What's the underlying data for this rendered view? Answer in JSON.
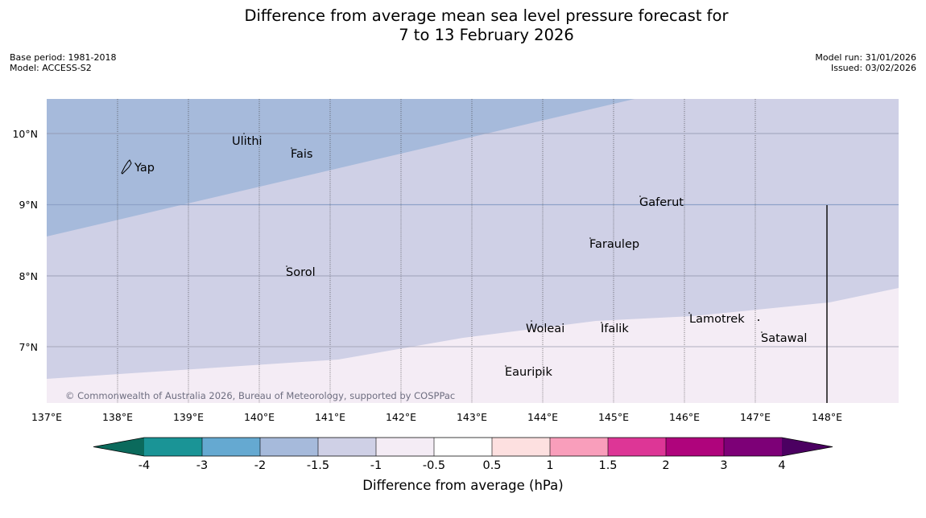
{
  "header": {
    "title_line1": "Difference from average mean sea level pressure forecast for",
    "title_line2": "7 to 13 February 2026",
    "base_period": "Base period: 1981-2018",
    "model": "Model: ACCESS-S2",
    "model_run": "Model run: 31/01/2026",
    "issued": "Issued: 03/02/2026"
  },
  "map": {
    "lon_range": [
      137,
      149
    ],
    "lat_range": [
      6.2,
      10.5
    ],
    "lon_labels": [
      "137°E",
      "138°E",
      "139°E",
      "140°E",
      "141°E",
      "142°E",
      "143°E",
      "144°E",
      "145°E",
      "146°E",
      "147°E",
      "148°E"
    ],
    "lat_labels": [
      "10°N",
      "9°N",
      "8°N",
      "7°N"
    ],
    "copyright": "© Commonwealth of Australia 2026, Bureau of Meteorology, supported by COSPPac",
    "islands": [
      {
        "name": "Yap",
        "lon": 138.2,
        "lat": 9.55
      },
      {
        "name": "Ulithi",
        "lon": 139.7,
        "lat": 9.9
      },
      {
        "name": "Fais",
        "lon": 140.5,
        "lat": 9.75
      },
      {
        "name": "Gaferut",
        "lon": 145.3,
        "lat": 9.05
      },
      {
        "name": "Faraulep",
        "lon": 144.6,
        "lat": 8.45
      },
      {
        "name": "Sorol",
        "lon": 140.4,
        "lat": 8.05
      },
      {
        "name": "Woleai",
        "lon": 143.9,
        "lat": 7.3
      },
      {
        "name": "Ifalik",
        "lon": 144.5,
        "lat": 7.25
      },
      {
        "name": "Lamotrek",
        "lon": 146.0,
        "lat": 7.4
      },
      {
        "name": "Satawal",
        "lon": 147.1,
        "lat": 7.1
      },
      {
        "name": "Eauripik",
        "lon": 143.1,
        "lat": 6.65
      }
    ]
  },
  "legend": {
    "title": "Difference from average (hPa)",
    "tick_labels": [
      "-4",
      "-3",
      "-2",
      "-1.5",
      "-1",
      "-0.5",
      "0.5",
      "1",
      "1.5",
      "2",
      "3",
      "4"
    ],
    "colors": [
      "#0b6a5c",
      "#1a9496",
      "#65a9d1",
      "#a6badb",
      "#cfd0e6",
      "#f4ecf5",
      "#ffffff",
      "#fde0e0",
      "#f99ebb",
      "#dd3696",
      "#af047c",
      "#7d0077",
      "#4b0061"
    ]
  }
}
